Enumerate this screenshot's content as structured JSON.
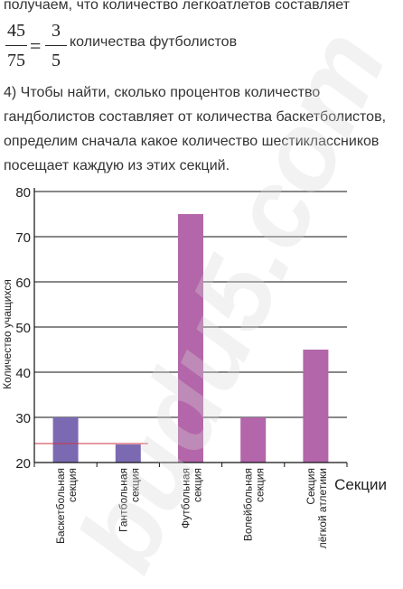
{
  "text": {
    "line1": "получаем, что количество легкоатлетов составляет",
    "fraction1": {
      "numerator": "45",
      "denominator": "75"
    },
    "equals": "=",
    "fraction2": {
      "numerator": "3",
      "denominator": "5"
    },
    "fraction_suffix": "количества футболистов",
    "para": [
      "4) Чтобы найти, сколько процентов количество",
      "гандболистов составляет от количества баскетболистов,",
      "определим сначала какое количество шестиклассников",
      "посещает каждую из этих секций."
    ]
  },
  "chart_data": {
    "type": "bar",
    "title": "",
    "xlabel": "Секции",
    "ylabel": "Количество учащихся",
    "ylim": [
      20,
      80
    ],
    "yticks": [
      20,
      30,
      40,
      50,
      60,
      70,
      80
    ],
    "grid": true,
    "categories": [
      [
        "Баскетбольная",
        "секция"
      ],
      [
        "Гантбольная",
        "секция"
      ],
      [
        "Футбольная",
        "секция"
      ],
      [
        "Волейбольная",
        "секция"
      ],
      [
        "Секция",
        "лёгкой атлетики"
      ]
    ],
    "values": [
      30,
      24,
      75,
      30,
      45
    ],
    "colors": [
      "#7b6ab2",
      "#7b6ab2",
      "#b366a9",
      "#b366a9",
      "#b366a9"
    ],
    "annotation_line_value": 24,
    "annotation_line_color": "#cc3344"
  },
  "watermark": "budu5.com"
}
